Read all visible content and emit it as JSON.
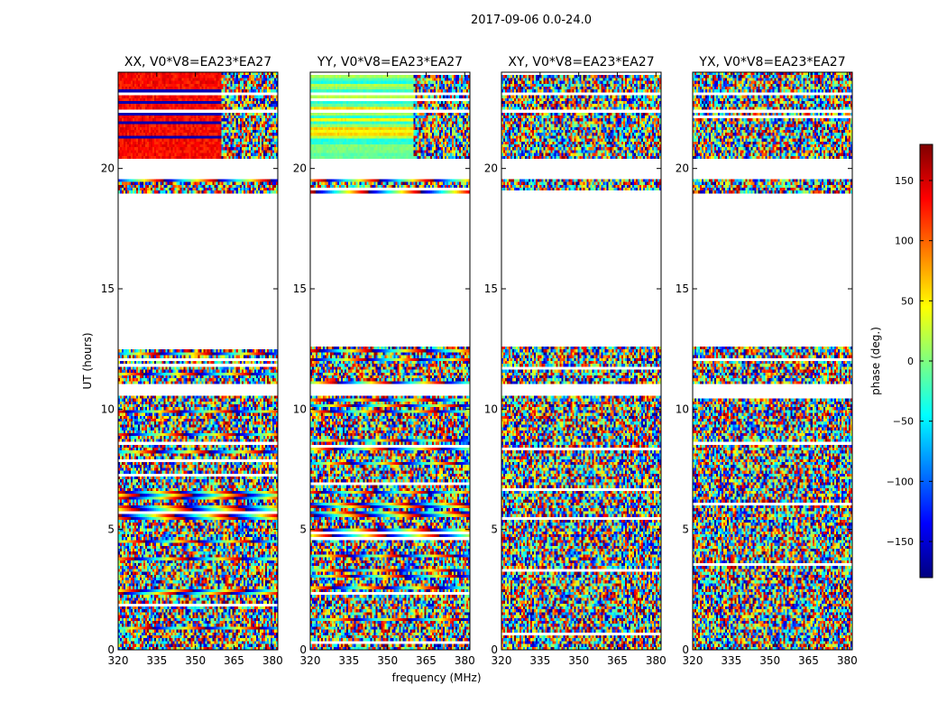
{
  "figure": {
    "suptitle": "2017-09-06 0.0-24.0",
    "xlabel": "frequency (MHz)",
    "ylabel": "UT (hours)"
  },
  "chart_data": {
    "type": "heatmap",
    "title": "2017-09-06 0.0-24.0",
    "xlabel": "frequency (MHz)",
    "ylabel": "UT (hours)",
    "xlim": [
      320,
      382
    ],
    "ylim": [
      0,
      24
    ],
    "xticks": [
      320,
      335,
      350,
      365,
      380
    ],
    "xtick_labels": [
      "320",
      "335",
      "350",
      "365",
      "380"
    ],
    "yticks": [
      0,
      5,
      10,
      15,
      20
    ],
    "ytick_labels": [
      "0",
      "5",
      "10",
      "15",
      "20"
    ],
    "panels": [
      {
        "title": "XX, V0*V8=EA23*EA27",
        "pattern": "xx"
      },
      {
        "title": "YY, V0*V8=EA23*EA27",
        "pattern": "yy"
      },
      {
        "title": "XY, V0*V8=EA23*EA27",
        "pattern": "noise"
      },
      {
        "title": "YX, V0*V8=EA23*EA27",
        "pattern": "noise"
      }
    ],
    "gaps_hours": [
      [
        12.6,
        19.0
      ],
      [
        19.55,
        20.4
      ],
      [
        10.6,
        11.0
      ],
      [
        22.3,
        22.5
      ],
      [
        23.0,
        23.2
      ]
    ],
    "colorbar": {
      "label": "phase (deg.)",
      "range": [
        -180,
        180
      ],
      "ticks": [
        150,
        100,
        50,
        0,
        -50,
        -100,
        -150
      ],
      "tick_labels": [
        "150",
        "100",
        "50",
        "0",
        "−50",
        "−100",
        "−150"
      ],
      "colormap": [
        "#00007f",
        "#0000ff",
        "#007fff",
        "#00ffff",
        "#7fff7f",
        "#ffff00",
        "#ff7f00",
        "#ff0000",
        "#7f0000"
      ]
    }
  }
}
